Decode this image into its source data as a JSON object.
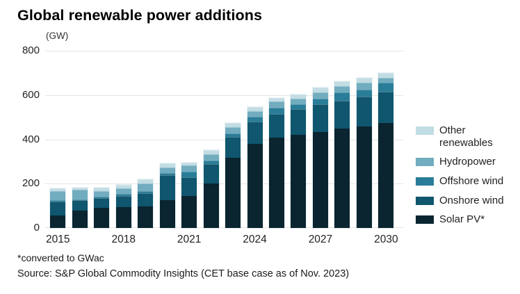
{
  "title": "Global renewable power additions",
  "unit_label": "(GW)",
  "footnote": "*converted to GWac",
  "source": "Source: S&P Global Commodity Insights (CET base case as of Nov. 2023)",
  "colors": {
    "solar_pv": "#0A2430",
    "onshore_wind": "#0F566E",
    "offshore_wind": "#2A7D98",
    "hydropower": "#72ACBF",
    "other_renewables": "#C2DCE4",
    "gridline": "#E4E4E4",
    "axis_text": "#222222"
  },
  "chart_data": {
    "type": "bar",
    "stacked": true,
    "title": "Global renewable power additions",
    "ylabel": "(GW)",
    "xlabel": "",
    "ylim": [
      0,
      800
    ],
    "yticks": [
      0,
      200,
      400,
      600,
      800
    ],
    "grid": true,
    "legend_position": "right",
    "x": [
      2015,
      2016,
      2017,
      2018,
      2019,
      2020,
      2021,
      2022,
      2023,
      2024,
      2025,
      2026,
      2027,
      2028,
      2029,
      2030
    ],
    "x_tick_labels": [
      "2015",
      "2018",
      "2021",
      "2024",
      "2027",
      "2030"
    ],
    "x_tick_indices": [
      0,
      3,
      6,
      9,
      12,
      15
    ],
    "stack_order_note": "series listed bottom-to-top of stack",
    "series": [
      {
        "name": "Solar PV*",
        "color_key": "solar_pv",
        "values": [
          57,
          78,
          90,
          95,
          96,
          126,
          143,
          200,
          318,
          380,
          407,
          421,
          433,
          450,
          457,
          475
        ]
      },
      {
        "name": "Onshore wind",
        "color_key": "onshore_wind",
        "values": [
          60,
          44,
          42,
          47,
          58,
          110,
          83,
          86,
          90,
          97,
          106,
          112,
          122,
          121,
          132,
          137
        ]
      },
      {
        "name": "Offshore wind",
        "color_key": "offshore_wind",
        "values": [
          2,
          2,
          3,
          4,
          6,
          6,
          21,
          12,
          14,
          18,
          24,
          18,
          21,
          33,
          29,
          38
        ]
      },
      {
        "name": "Hydropower",
        "color_key": "hydropower",
        "values": [
          38,
          39,
          23,
          23,
          30,
          22,
          25,
          24,
          25,
          24,
          25,
          24,
          26,
          28,
          29,
          19
        ]
      },
      {
        "name": "Other renewables",
        "color_key": "other_renewables",
        "values": [
          8,
          8,
          13,
          13,
          16,
          14,
          12,
          18,
          13,
          15,
          13,
          15,
          18,
          18,
          18,
          18
        ]
      }
    ],
    "legend": [
      {
        "label": "Other renewables",
        "color_key": "other_renewables"
      },
      {
        "label": "Hydropower",
        "color_key": "hydropower"
      },
      {
        "label": "Offshore wind",
        "color_key": "offshore_wind"
      },
      {
        "label": "Onshore wind",
        "color_key": "onshore_wind"
      },
      {
        "label": "Solar PV*",
        "color_key": "solar_pv"
      }
    ]
  }
}
